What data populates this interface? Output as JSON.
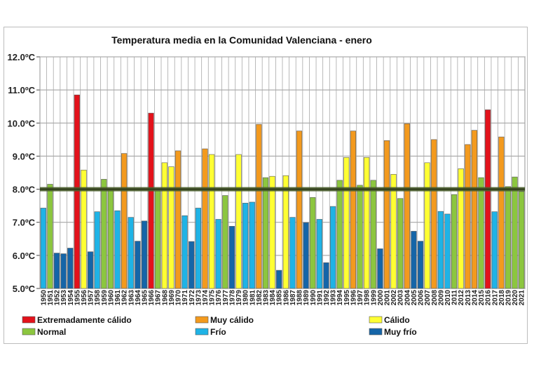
{
  "chart_data": {
    "type": "bar",
    "title": "Temperatura  media  en  la  Comunidad  Valenciana  -  enero",
    "ylim": [
      5.0,
      12.0
    ],
    "y_ticks": [
      "5.0ºC",
      "6.0ºC",
      "7.0ºC",
      "8.0ºC",
      "9.0ºC",
      "10.0ºC",
      "11.0ºC",
      "12.0ºC"
    ],
    "y_tick_values": [
      5,
      6,
      7,
      8,
      9,
      10,
      11,
      12
    ],
    "reference_line": 8.0,
    "grid": true,
    "legend_position": "bottom",
    "categories": [
      "1950",
      "1951",
      "1952",
      "1953",
      "1954",
      "1955",
      "1956",
      "1957",
      "1958",
      "1959",
      "1960",
      "1961",
      "1962",
      "1963",
      "1964",
      "1965",
      "1966",
      "1967",
      "1968",
      "1969",
      "1970",
      "1971",
      "1972",
      "1973",
      "1974",
      "1975",
      "1976",
      "1977",
      "1978",
      "1979",
      "1980",
      "1981",
      "1982",
      "1983",
      "1984",
      "1985",
      "1986",
      "1987",
      "1988",
      "1989",
      "1990",
      "1991",
      "1992",
      "1993",
      "1994",
      "1995",
      "1996",
      "1997",
      "1998",
      "1999",
      "2000",
      "2001",
      "2002",
      "2003",
      "2004",
      "2005",
      "2006",
      "2007",
      "2008",
      "2009",
      "2010",
      "2011",
      "2012",
      "2013",
      "2014",
      "2015",
      "2016",
      "2017",
      "2018",
      "2019",
      "2020",
      "2021"
    ],
    "values": [
      7.43,
      8.15,
      6.07,
      6.05,
      6.22,
      10.85,
      8.58,
      6.11,
      7.32,
      8.3,
      8.0,
      7.35,
      9.08,
      7.15,
      6.43,
      7.04,
      10.3,
      7.95,
      8.8,
      8.68,
      9.16,
      7.2,
      6.42,
      7.43,
      9.22,
      9.05,
      7.09,
      7.81,
      6.88,
      9.05,
      7.58,
      7.61,
      9.96,
      8.35,
      8.39,
      5.55,
      8.41,
      7.15,
      9.76,
      6.99,
      7.75,
      7.09,
      5.78,
      7.48,
      8.27,
      8.96,
      9.76,
      8.12,
      8.96,
      8.27,
      6.2,
      9.47,
      8.45,
      7.72,
      9.98,
      6.73,
      6.43,
      8.8,
      9.5,
      7.33,
      7.25,
      7.84,
      8.62,
      9.35,
      9.78,
      8.35,
      10.4,
      7.32,
      9.58,
      8.08,
      8.37,
      7.93
    ],
    "classes": [
      "frio",
      "normal",
      "muy_frio",
      "muy_frio",
      "muy_frio",
      "extremo",
      "calido",
      "muy_frio",
      "frio",
      "normal",
      "normal",
      "frio",
      "muy_calido",
      "frio",
      "muy_frio",
      "muy_frio",
      "extremo",
      "normal",
      "calido",
      "calido",
      "muy_calido",
      "frio",
      "muy_frio",
      "frio",
      "muy_calido",
      "calido",
      "frio",
      "normal",
      "muy_frio",
      "calido",
      "frio",
      "frio",
      "muy_calido",
      "normal",
      "calido",
      "muy_frio",
      "calido",
      "frio",
      "muy_calido",
      "muy_frio",
      "normal",
      "frio",
      "muy_frio",
      "frio",
      "normal",
      "calido",
      "muy_calido",
      "normal",
      "calido",
      "normal",
      "muy_frio",
      "muy_calido",
      "calido",
      "normal",
      "muy_calido",
      "muy_frio",
      "muy_frio",
      "calido",
      "muy_calido",
      "frio",
      "frio",
      "normal",
      "calido",
      "muy_calido",
      "muy_calido",
      "normal",
      "extremo",
      "frio",
      "muy_calido",
      "normal",
      "normal",
      "normal"
    ],
    "legend": [
      {
        "key": "extremo",
        "label": "Extremadamente cálido",
        "color": "#e3121b"
      },
      {
        "key": "muy_calido",
        "label": "Muy cálido",
        "color": "#f39a1e"
      },
      {
        "key": "calido",
        "label": "Cálido",
        "color": "#ffff33"
      },
      {
        "key": "normal",
        "label": "Normal",
        "color": "#8cc63f"
      },
      {
        "key": "frio",
        "label": "Frío",
        "color": "#1fb3e6"
      },
      {
        "key": "muy_frio",
        "label": "Muy frío",
        "color": "#1565a8"
      }
    ]
  }
}
